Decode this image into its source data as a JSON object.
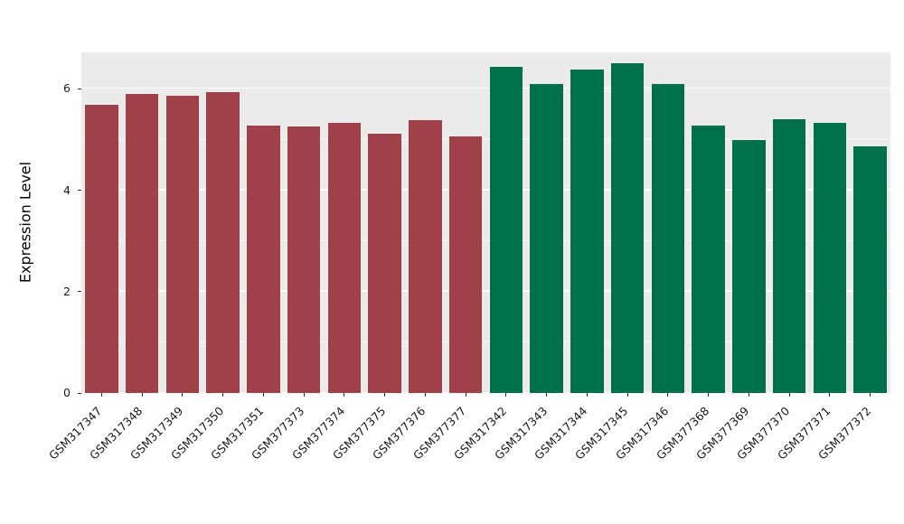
{
  "chart_data": {
    "type": "bar",
    "title": "",
    "xlabel": "",
    "ylabel": "Expression Level",
    "ylim": [
      0,
      6.72
    ],
    "yticks": [
      0,
      2,
      4,
      6
    ],
    "yminor": [
      1,
      3,
      5
    ],
    "grid": "on",
    "legend": "none",
    "panel_background": "#EBEBEB",
    "grid_color": "#FFFFFF",
    "categories": [
      "GSM317347",
      "GSM317348",
      "GSM317349",
      "GSM317350",
      "GSM317351",
      "GSM377373",
      "GSM377374",
      "GSM377375",
      "GSM377376",
      "GSM377377",
      "GSM317342",
      "GSM317343",
      "GSM317344",
      "GSM317345",
      "GSM317346",
      "GSM377368",
      "GSM377369",
      "GSM377370",
      "GSM377371",
      "GSM377372"
    ],
    "values": [
      5.68,
      5.9,
      5.87,
      5.93,
      5.27,
      5.25,
      5.33,
      5.12,
      5.39,
      5.06,
      6.43,
      6.09,
      6.38,
      6.5,
      6.09,
      5.27,
      5.0,
      5.41,
      5.33,
      4.86
    ],
    "groups": [
      "group1",
      "group1",
      "group1",
      "group1",
      "group1",
      "group1",
      "group1",
      "group1",
      "group1",
      "group1",
      "group2",
      "group2",
      "group2",
      "group2",
      "group2",
      "group2",
      "group2",
      "group2",
      "group2",
      "group2"
    ],
    "group_colors": {
      "group1": "#A04049",
      "group2": "#00704A"
    }
  }
}
